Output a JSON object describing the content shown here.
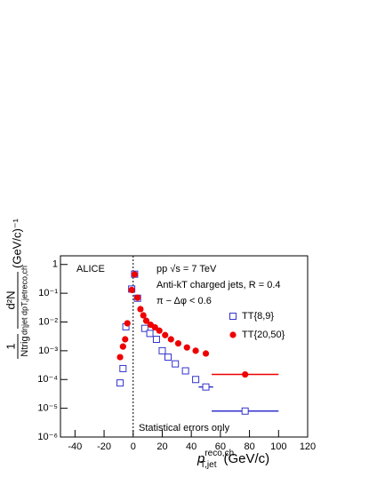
{
  "chart_data": {
    "type": "scatter",
    "annotations": [
      "ALICE",
      "pp √s = 7 TeV",
      "Anti-kT charged jets, R = 0.4",
      "π − Δφ < 0.6",
      "Statistical errors only"
    ],
    "x_label": {
      "main": "p",
      "sub": "T,jet",
      "sup": "reco,ch",
      "unit": "(GeV/c)"
    },
    "y_label": {
      "one": "1",
      "ntrig": "Ntrig",
      "num": "d²N",
      "den": "dηjet dpT,jetreco,ch",
      "unit": "(GeV/c)⁻¹"
    },
    "xlim": [
      -50,
      120
    ],
    "ylim": [
      1e-06,
      2
    ],
    "log_y": true,
    "vline": 0,
    "xticks": [
      -40,
      -20,
      0,
      20,
      40,
      60,
      80,
      100,
      120
    ],
    "yticks": [
      {
        "value": 1e-06,
        "label": "10⁻⁶"
      },
      {
        "value": 1e-05,
        "label": "10⁻⁵"
      },
      {
        "value": 0.0001,
        "label": "10⁻⁴"
      },
      {
        "value": 0.001,
        "label": "10⁻³"
      },
      {
        "value": 0.01,
        "label": "10⁻²"
      },
      {
        "value": 0.1,
        "label": "10⁻¹"
      },
      1
    ],
    "series": [
      {
        "name": "TT{8,9}",
        "color": "#3333cc",
        "marker": "open-square",
        "x": [
          -9,
          -7,
          -5,
          -1,
          1,
          3,
          8,
          11.5,
          16,
          20,
          24,
          29,
          36,
          43,
          50,
          77
        ],
        "values": [
          7.6e-05,
          0.00024,
          0.0068,
          0.14,
          0.46,
          0.067,
          0.006,
          0.004,
          0.0025,
          0.001,
          0.0006,
          0.00035,
          0.0002,
          0.0001,
          5.5e-05,
          8e-06
        ],
        "x_errors": [
          null,
          null,
          null,
          null,
          null,
          null,
          null,
          null,
          null,
          null,
          null,
          null,
          null,
          null,
          5,
          23
        ]
      },
      {
        "name": "TT{20,50}",
        "color": "#ee0000",
        "marker": "filled-circle",
        "x": [
          -9,
          -7,
          -5.5,
          -4,
          -1,
          1,
          3,
          5,
          7,
          9,
          12,
          15,
          18,
          22,
          26,
          31,
          37,
          43,
          50,
          77
        ],
        "values": [
          0.0006,
          0.0014,
          0.0025,
          0.009,
          0.13,
          0.45,
          0.07,
          0.028,
          0.017,
          0.011,
          0.008,
          0.0065,
          0.005,
          0.0035,
          0.0025,
          0.0018,
          0.0013,
          0.001,
          0.0008,
          0.00015
        ],
        "x_errors": [
          null,
          null,
          null,
          null,
          null,
          null,
          null,
          null,
          null,
          null,
          null,
          null,
          null,
          null,
          null,
          null,
          null,
          null,
          null,
          23
        ]
      }
    ]
  }
}
